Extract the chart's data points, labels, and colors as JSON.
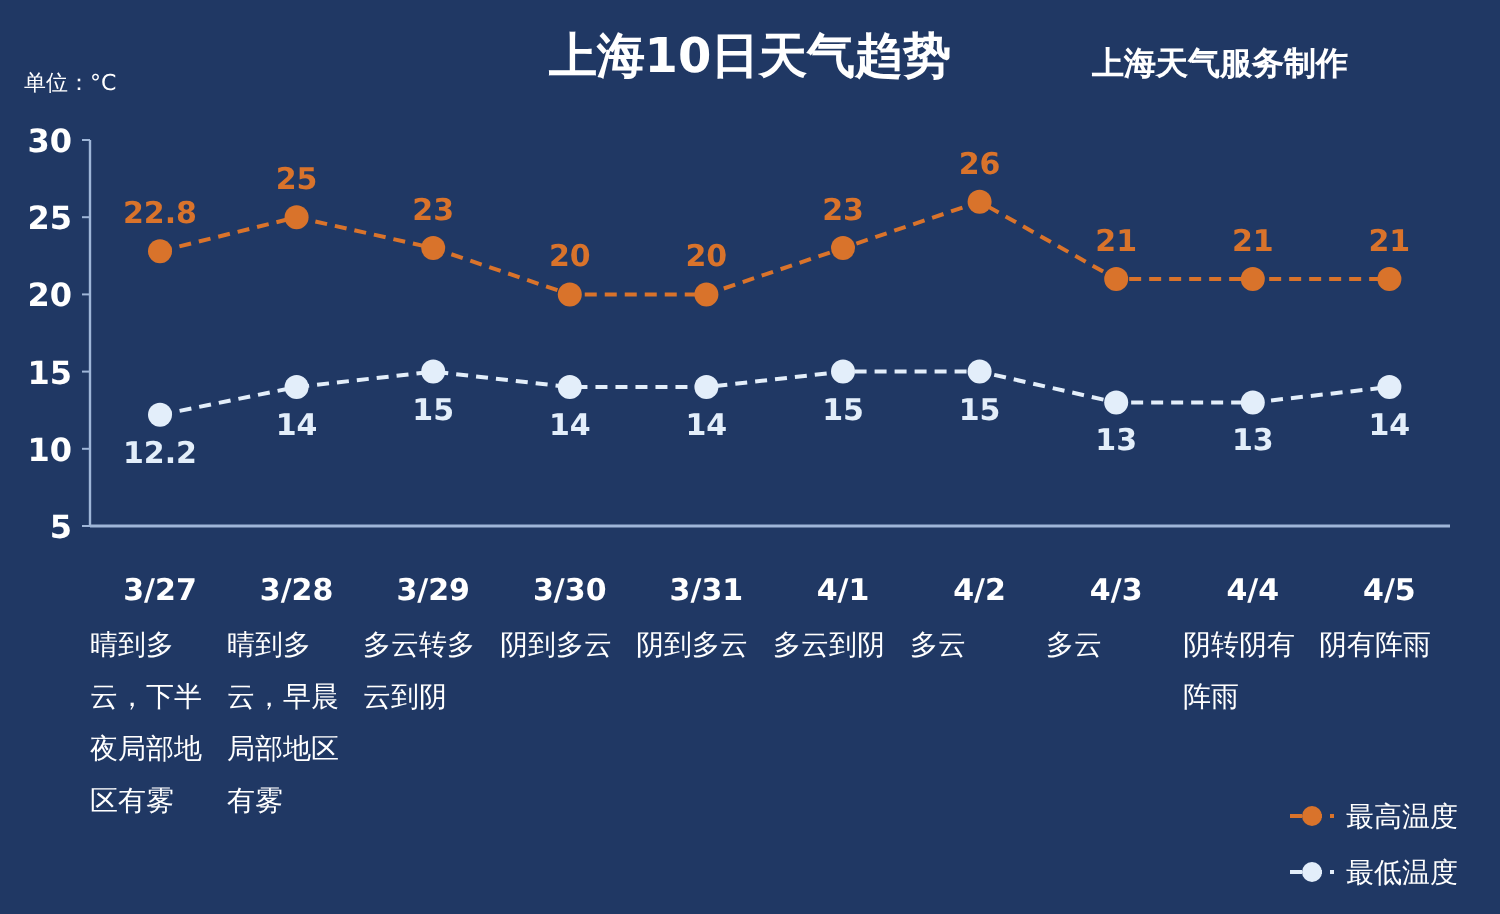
{
  "chart_data": {
    "type": "line",
    "title": "上海10日天气趋势",
    "subtitle": "上海天气服务制作",
    "ylabel": "单位：°C",
    "categories": [
      "3/27",
      "3/28",
      "3/29",
      "3/30",
      "3/31",
      "4/1",
      "4/2",
      "4/3",
      "4/4",
      "4/5"
    ],
    "series": [
      {
        "name": "最高温度",
        "color": "#d9732b",
        "values": [
          22.8,
          25,
          23,
          20,
          20,
          23,
          26,
          21,
          21,
          21
        ]
      },
      {
        "name": "最低温度",
        "color": "#e3eefa",
        "values": [
          12.2,
          14,
          15,
          14,
          14,
          15,
          15,
          13,
          13,
          14
        ]
      }
    ],
    "ylim": [
      5,
      30
    ],
    "yticks": [
      5,
      10,
      15,
      20,
      25,
      30
    ],
    "data_labels": true,
    "marker": "circle",
    "line_style": "dashed",
    "legend": "bottom right",
    "grid": false,
    "annotations": [
      "晴到多云，下半夜局部地区有雾",
      "晴到多云，早晨局部地区有雾",
      "多云转多云到阴",
      "阴到多云",
      "阴到多云",
      "多云到阴",
      "多云",
      "多云",
      "阴转阴有阵雨",
      "阴有阵雨"
    ]
  }
}
